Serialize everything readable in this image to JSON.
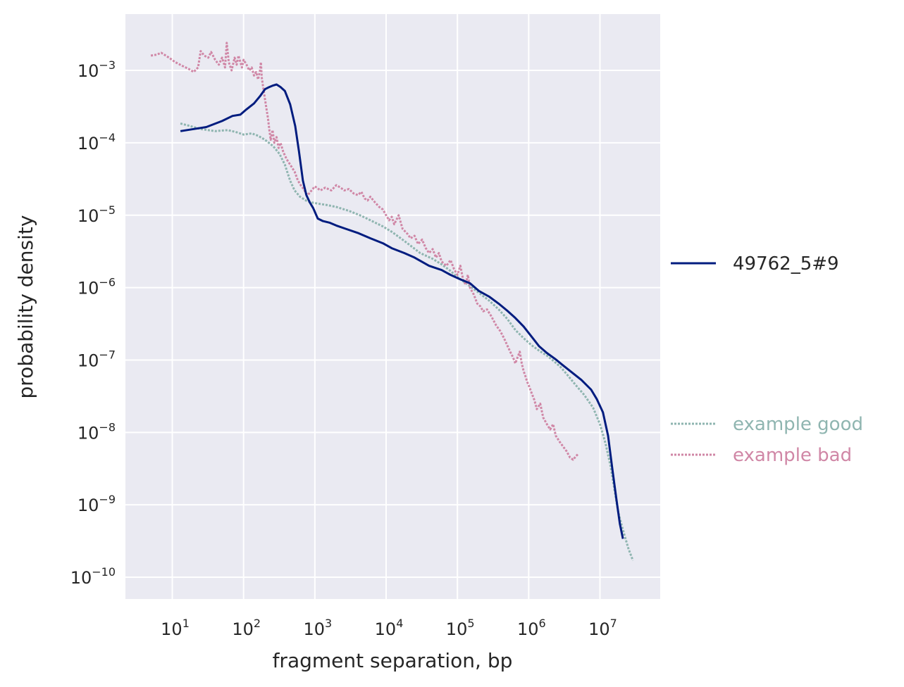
{
  "chart_data": {
    "type": "line",
    "xlabel": "fragment separation, bp",
    "ylabel": "probability density",
    "x_scale": "log",
    "y_scale": "log",
    "xlim": [
      2.2,
      70000000
    ],
    "ylim": [
      5e-11,
      0.006
    ],
    "x_ticks": [
      {
        "base": "10",
        "exp": "1",
        "value": 10
      },
      {
        "base": "10",
        "exp": "2",
        "value": 100
      },
      {
        "base": "10",
        "exp": "3",
        "value": 1000
      },
      {
        "base": "10",
        "exp": "4",
        "value": 10000
      },
      {
        "base": "10",
        "exp": "5",
        "value": 100000
      },
      {
        "base": "10",
        "exp": "6",
        "value": 1000000
      },
      {
        "base": "10",
        "exp": "7",
        "value": 10000000
      }
    ],
    "y_ticks": [
      {
        "base": "10",
        "exp": "−3",
        "value": 0.001
      },
      {
        "base": "10",
        "exp": "−4",
        "value": 0.0001
      },
      {
        "base": "10",
        "exp": "−5",
        "value": 1e-05
      },
      {
        "base": "10",
        "exp": "−6",
        "value": 1e-06
      },
      {
        "base": "10",
        "exp": "−7",
        "value": 1e-07
      },
      {
        "base": "10",
        "exp": "−8",
        "value": 1e-08
      },
      {
        "base": "10",
        "exp": "−9",
        "value": 1e-09
      },
      {
        "base": "10",
        "exp": "−10",
        "value": 1e-10
      }
    ],
    "grid": true,
    "legend_position": "right",
    "colors": {
      "background": "#eaeaf2",
      "grid": "#ffffff"
    },
    "series": [
      {
        "name": "49762_5#9",
        "color": "#001c7f",
        "style": "solid",
        "points": [
          [
            13,
            0.000145
          ],
          [
            20,
            0.000155
          ],
          [
            30,
            0.000165
          ],
          [
            50,
            0.0002
          ],
          [
            70,
            0.000235
          ],
          [
            90,
            0.000245
          ],
          [
            110,
            0.00029
          ],
          [
            140,
            0.00035
          ],
          [
            170,
            0.00044
          ],
          [
            200,
            0.00055
          ],
          [
            230,
            0.00059
          ],
          [
            260,
            0.00062
          ],
          [
            290,
            0.00064
          ],
          [
            330,
            0.00059
          ],
          [
            380,
            0.00052
          ],
          [
            450,
            0.00034
          ],
          [
            530,
            0.00017
          ],
          [
            600,
            7.5e-05
          ],
          [
            680,
            3e-05
          ],
          [
            760,
            1.9e-05
          ],
          [
            850,
            1.5e-05
          ],
          [
            950,
            1.25e-05
          ],
          [
            1100,
            9e-06
          ],
          [
            1300,
            8.3e-06
          ],
          [
            1600,
            7.9e-06
          ],
          [
            2000,
            7.2e-06
          ],
          [
            2700,
            6.5e-06
          ],
          [
            4000,
            5.7e-06
          ],
          [
            6000,
            4.8e-06
          ],
          [
            9000,
            4.1e-06
          ],
          [
            12000,
            3.5e-06
          ],
          [
            18000,
            3e-06
          ],
          [
            25000,
            2.6e-06
          ],
          [
            40000,
            2e-06
          ],
          [
            60000,
            1.75e-06
          ],
          [
            80000,
            1.5e-06
          ],
          [
            110000,
            1.3e-06
          ],
          [
            150000,
            1.15e-06
          ],
          [
            200000,
            9e-07
          ],
          [
            280000,
            7.5e-07
          ],
          [
            380000,
            6e-07
          ],
          [
            500000,
            4.8e-07
          ],
          [
            650000,
            3.8e-07
          ],
          [
            850000,
            2.9e-07
          ],
          [
            1100000,
            2.1e-07
          ],
          [
            1400000,
            1.55e-07
          ],
          [
            1800000,
            1.25e-07
          ],
          [
            2400000,
            1.02e-07
          ],
          [
            3000000,
            8.5e-08
          ],
          [
            4000000,
            6.8e-08
          ],
          [
            5500000,
            5.3e-08
          ],
          [
            7500000,
            3.9e-08
          ],
          [
            9000000,
            2.9e-08
          ],
          [
            11000000,
            1.9e-08
          ],
          [
            13000000,
            9e-09
          ],
          [
            15000000,
            3e-09
          ],
          [
            17000000,
            1.2e-09
          ],
          [
            19000000,
            5.5e-10
          ],
          [
            21000000,
            3.4e-10
          ]
        ]
      },
      {
        "name": "example good",
        "color": "#8fb5b0",
        "style": "dotted",
        "points": [
          [
            13,
            0.000185
          ],
          [
            18,
            0.00017
          ],
          [
            25,
            0.000155
          ],
          [
            40,
            0.000145
          ],
          [
            60,
            0.00015
          ],
          [
            80,
            0.00014
          ],
          [
            100,
            0.00013
          ],
          [
            130,
            0.000135
          ],
          [
            160,
            0.000125
          ],
          [
            200,
            0.00011
          ],
          [
            260,
            9e-05
          ],
          [
            320,
            7e-05
          ],
          [
            380,
            5e-05
          ],
          [
            450,
            3e-05
          ],
          [
            520,
            2.2e-05
          ],
          [
            620,
            1.8e-05
          ],
          [
            750,
            1.6e-05
          ],
          [
            900,
            1.5e-05
          ],
          [
            1100,
            1.45e-05
          ],
          [
            1500,
            1.38e-05
          ],
          [
            2000,
            1.3e-05
          ],
          [
            3000,
            1.15e-05
          ],
          [
            4500,
            9.8e-06
          ],
          [
            6500,
            8.2e-06
          ],
          [
            9000,
            7e-06
          ],
          [
            12000,
            5.9e-06
          ],
          [
            16000,
            4.8e-06
          ],
          [
            22000,
            3.8e-06
          ],
          [
            30000,
            3e-06
          ],
          [
            45000,
            2.5e-06
          ],
          [
            60000,
            2.1e-06
          ],
          [
            80000,
            1.7e-06
          ],
          [
            100000,
            1.4e-06
          ],
          [
            140000,
            1.1e-06
          ],
          [
            200000,
            8.5e-07
          ],
          [
            280000,
            6.6e-07
          ],
          [
            380000,
            5e-07
          ],
          [
            500000,
            3.7e-07
          ],
          [
            650000,
            2.6e-07
          ],
          [
            850000,
            2e-07
          ],
          [
            1100000,
            1.6e-07
          ],
          [
            1400000,
            1.35e-07
          ],
          [
            1800000,
            1.15e-07
          ],
          [
            2300000,
            9.5e-08
          ],
          [
            2800000,
            8e-08
          ],
          [
            3500000,
            6.2e-08
          ],
          [
            4500000,
            4.6e-08
          ],
          [
            6000000,
            3.3e-08
          ],
          [
            8000000,
            2.2e-08
          ],
          [
            10000000,
            1.3e-08
          ],
          [
            12000000,
            7e-09
          ],
          [
            14000000,
            3.5e-09
          ],
          [
            16000000,
            1.6e-09
          ],
          [
            18000000,
            8e-10
          ],
          [
            21000000,
            4.5e-10
          ],
          [
            25000000,
            2.5e-10
          ],
          [
            29000000,
            1.7e-10
          ]
        ]
      },
      {
        "name": "example bad",
        "color": "#d087a6",
        "style": "dotted",
        "points": [
          [
            5,
            0.0016
          ],
          [
            6,
            0.00165
          ],
          [
            7,
            0.00175
          ],
          [
            9,
            0.0015
          ],
          [
            11,
            0.0013
          ],
          [
            14,
            0.00115
          ],
          [
            17,
            0.00105
          ],
          [
            20,
            0.00095
          ],
          [
            23,
            0.0011
          ],
          [
            25,
            0.00185
          ],
          [
            28,
            0.0016
          ],
          [
            32,
            0.0015
          ],
          [
            35,
            0.0018
          ],
          [
            40,
            0.0014
          ],
          [
            45,
            0.0012
          ],
          [
            50,
            0.0015
          ],
          [
            55,
            0.0011
          ],
          [
            58,
            0.0024
          ],
          [
            62,
            0.0013
          ],
          [
            68,
            0.001
          ],
          [
            75,
            0.0015
          ],
          [
            80,
            0.0012
          ],
          [
            85,
            0.0016
          ],
          [
            90,
            0.0013
          ],
          [
            95,
            0.0011
          ],
          [
            100,
            0.0014
          ],
          [
            110,
            0.0012
          ],
          [
            120,
            0.001
          ],
          [
            130,
            0.0011
          ],
          [
            140,
            0.00085
          ],
          [
            150,
            0.00095
          ],
          [
            160,
            0.00075
          ],
          [
            170,
            0.001
          ],
          [
            175,
            0.0013
          ],
          [
            180,
            0.0008
          ],
          [
            190,
            0.00055
          ],
          [
            200,
            0.0004
          ],
          [
            210,
            0.00029
          ],
          [
            220,
            0.00022
          ],
          [
            230,
            0.00015
          ],
          [
            240,
            0.00011
          ],
          [
            255,
            0.00015
          ],
          [
            270,
            0.0001
          ],
          [
            290,
            0.00012
          ],
          [
            310,
            8.5e-05
          ],
          [
            330,
            0.0001
          ],
          [
            360,
            7.5e-05
          ],
          [
            400,
            6e-05
          ],
          [
            450,
            5e-05
          ],
          [
            520,
            4e-05
          ],
          [
            580,
            3e-05
          ],
          [
            650,
            2.5e-05
          ],
          [
            700,
            2.3e-05
          ],
          [
            750,
            2e-05
          ],
          [
            800,
            1.9e-05
          ],
          [
            900,
            2.2e-05
          ],
          [
            1000,
            2.5e-05
          ],
          [
            1200,
            2.2e-05
          ],
          [
            1400,
            2.4e-05
          ],
          [
            1700,
            2.2e-05
          ],
          [
            2000,
            2.6e-05
          ],
          [
            2300,
            2.4e-05
          ],
          [
            2600,
            2.2e-05
          ],
          [
            3000,
            2.3e-05
          ],
          [
            3500,
            2e-05
          ],
          [
            4000,
            1.9e-05
          ],
          [
            4500,
            2.1e-05
          ],
          [
            5000,
            1.7e-05
          ],
          [
            5500,
            1.6e-05
          ],
          [
            6000,
            1.8e-05
          ],
          [
            7000,
            1.5e-05
          ],
          [
            8000,
            1.3e-05
          ],
          [
            9000,
            1.2e-05
          ],
          [
            10000,
            1e-05
          ],
          [
            11000,
            8.5e-06
          ],
          [
            12000,
            9.5e-06
          ],
          [
            13000,
            7.5e-06
          ],
          [
            15000,
            1e-05
          ],
          [
            17000,
            6.5e-06
          ],
          [
            20000,
            5.5e-06
          ],
          [
            22000,
            4.8e-06
          ],
          [
            25000,
            5.2e-06
          ],
          [
            28000,
            4e-06
          ],
          [
            32000,
            4.6e-06
          ],
          [
            36000,
            3.5e-06
          ],
          [
            40000,
            3e-06
          ],
          [
            45000,
            3.4e-06
          ],
          [
            50000,
            2.6e-06
          ],
          [
            55000,
            3e-06
          ],
          [
            60000,
            2.3e-06
          ],
          [
            70000,
            2e-06
          ],
          [
            80000,
            2.4e-06
          ],
          [
            90000,
            1.8e-06
          ],
          [
            100000,
            1.5e-06
          ],
          [
            110000,
            2e-06
          ],
          [
            120000,
            1.3e-06
          ],
          [
            130000,
            1.1e-06
          ],
          [
            140000,
            1.5e-06
          ],
          [
            150000,
            1e-06
          ],
          [
            170000,
            8e-07
          ],
          [
            190000,
            6e-07
          ],
          [
            210000,
            5.5e-07
          ],
          [
            230000,
            4.7e-07
          ],
          [
            260000,
            5e-07
          ],
          [
            300000,
            4e-07
          ],
          [
            350000,
            3e-07
          ],
          [
            400000,
            2.5e-07
          ],
          [
            450000,
            2e-07
          ],
          [
            500000,
            1.6e-07
          ],
          [
            550000,
            1.3e-07
          ],
          [
            600000,
            1.1e-07
          ],
          [
            650000,
            9e-08
          ],
          [
            700000,
            1.1e-07
          ],
          [
            750000,
            1.3e-07
          ],
          [
            800000,
            9e-08
          ],
          [
            850000,
            7e-08
          ],
          [
            900000,
            6e-08
          ],
          [
            950000,
            5e-08
          ],
          [
            1000000,
            4.5e-08
          ],
          [
            1100000,
            3.5e-08
          ],
          [
            1200000,
            2.8e-08
          ],
          [
            1300000,
            2.1e-08
          ],
          [
            1450000,
            2.5e-08
          ],
          [
            1600000,
            1.6e-08
          ],
          [
            1800000,
            1.3e-08
          ],
          [
            2000000,
            1.1e-08
          ],
          [
            2200000,
            1.3e-08
          ],
          [
            2400000,
            9e-09
          ],
          [
            2700000,
            7.5e-09
          ],
          [
            3000000,
            6.5e-09
          ],
          [
            3400000,
            5.5e-09
          ],
          [
            3800000,
            4.5e-09
          ],
          [
            4200000,
            4.2e-09
          ],
          [
            4600000,
            4.7e-09
          ],
          [
            5000000,
            5.1e-09
          ]
        ]
      }
    ]
  }
}
